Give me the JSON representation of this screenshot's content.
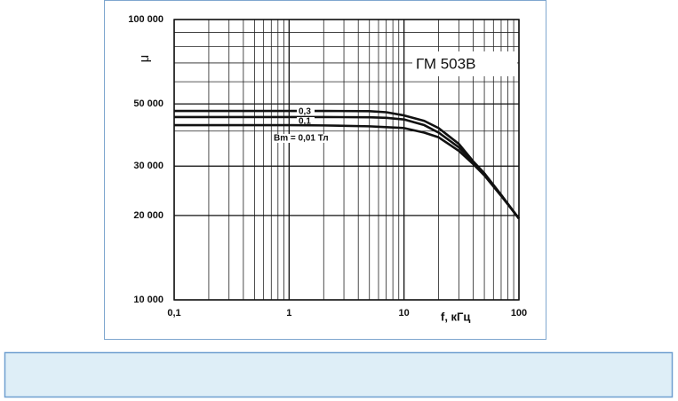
{
  "chart_data": {
    "type": "line",
    "annotation": "ГМ 503В",
    "ylabel": "μ",
    "xlabel": "f, кГц",
    "log_x": true,
    "log_y": true,
    "grid": true,
    "xlim": [
      0.1,
      100
    ],
    "xticks": [
      {
        "value": 0.1,
        "label": "0,1"
      },
      1,
      10,
      100
    ],
    "ylim": [
      10000,
      100000
    ],
    "yticks": [
      {
        "value": 10000,
        "label": "10 000"
      },
      {
        "value": 20000,
        "label": "20 000"
      },
      {
        "value": 30000,
        "label": "30 000"
      },
      {
        "value": 50000,
        "label": "50 000"
      },
      {
        "value": 100000,
        "label": "100 000"
      }
    ],
    "x": [
      0.1,
      0.2,
      0.5,
      1,
      2,
      5,
      7,
      10,
      15,
      20,
      30,
      40,
      50,
      70,
      100
    ],
    "series": [
      {
        "name": "0,3",
        "color": "#111111",
        "values": [
          47200,
          47200,
          47200,
          47200,
          47200,
          47100,
          46700,
          45500,
          43500,
          41000,
          36000,
          31200,
          28300,
          23700,
          19500
        ]
      },
      {
        "name": "0,1",
        "color": "#111111",
        "values": [
          44900,
          44900,
          44900,
          44900,
          44900,
          44800,
          44600,
          44000,
          42000,
          39500,
          35000,
          31000,
          28000,
          23600,
          19500
        ]
      },
      {
        "name": "Bm = 0,01 Тл",
        "color": "#111111",
        "values": [
          42000,
          42000,
          42000,
          42000,
          41900,
          41600,
          41300,
          41000,
          39500,
          38000,
          34000,
          30500,
          27800,
          23500,
          19500
        ]
      }
    ]
  }
}
